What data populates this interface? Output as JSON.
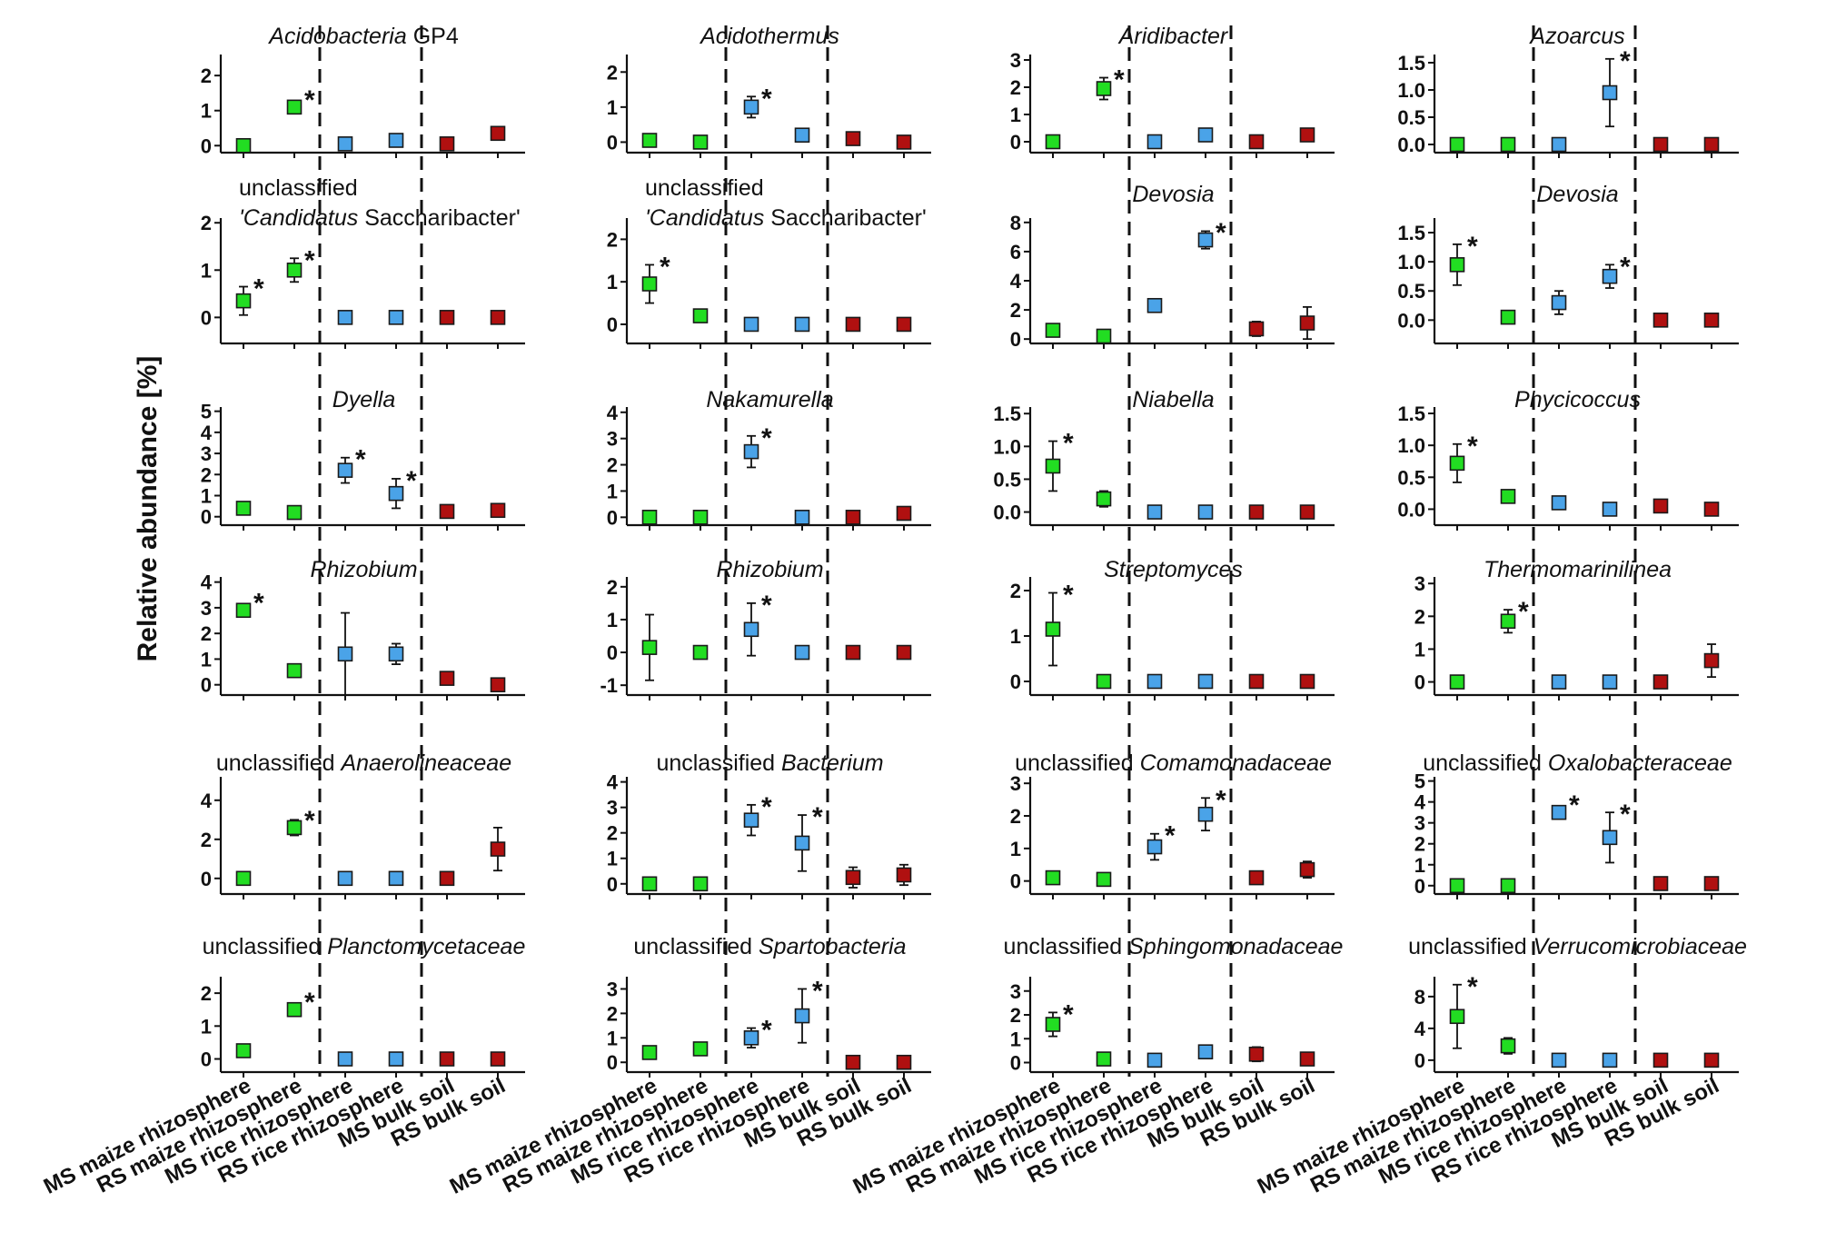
{
  "y_axis_label": "Relative abundance [%]",
  "x_categories": [
    "MS maize rhizosphere",
    "RS maize rhizosphere",
    "MS rice rhizosphere",
    "RS rice rhizosphere",
    "MS bulk soil",
    "RS bulk soil"
  ],
  "colors": {
    "maize": "#22dd22",
    "rice": "#4aa3e8",
    "bulk": "#b01010"
  },
  "chart_data": [
    {
      "type": "scatter",
      "row": 0,
      "col": 0,
      "title_parts": [
        {
          "text": "Acidobacteria",
          "italic": true
        },
        {
          "text": " GP4",
          "italic": false
        }
      ],
      "yticks": [
        "0",
        "1",
        "2"
      ],
      "ylim": [
        -0.2,
        2.6
      ],
      "values": [
        0.0,
        1.1,
        0.05,
        0.15,
        0.05,
        0.35
      ],
      "err": [
        0.05,
        0.1,
        0.05,
        0.1,
        0.05,
        0.08
      ],
      "sig": [
        false,
        true,
        false,
        false,
        false,
        false
      ]
    },
    {
      "type": "scatter",
      "row": 0,
      "col": 1,
      "title_parts": [
        {
          "text": "Acidothermus",
          "italic": true
        }
      ],
      "yticks": [
        "0",
        "1",
        "2"
      ],
      "ylim": [
        -0.3,
        2.5
      ],
      "values": [
        0.05,
        0.0,
        1.0,
        0.2,
        0.1,
        0.0
      ],
      "err": [
        0.1,
        0.1,
        0.3,
        0.1,
        0.1,
        0.1
      ],
      "sig": [
        false,
        false,
        true,
        false,
        false,
        false
      ]
    },
    {
      "type": "scatter",
      "row": 0,
      "col": 2,
      "title_parts": [
        {
          "text": "Aridibacter",
          "italic": true
        }
      ],
      "yticks": [
        "0",
        "1",
        "2",
        "3"
      ],
      "ylim": [
        -0.4,
        3.2
      ],
      "values": [
        0.0,
        1.95,
        0.0,
        0.25,
        0.0,
        0.25
      ],
      "err": [
        0.1,
        0.4,
        0.1,
        0.1,
        0.1,
        0.1
      ],
      "sig": [
        false,
        true,
        false,
        false,
        false,
        false
      ]
    },
    {
      "type": "scatter",
      "row": 0,
      "col": 3,
      "title_parts": [
        {
          "text": "Azoarcus",
          "italic": true
        }
      ],
      "yticks": [
        "0.0",
        "0.5",
        "1.0",
        "1.5"
      ],
      "ylim": [
        -0.15,
        1.65
      ],
      "values": [
        0.0,
        0.0,
        0.0,
        0.95,
        0.0,
        0.0
      ],
      "err": [
        0.02,
        0.02,
        0.05,
        0.62,
        0.02,
        0.02
      ],
      "sig": [
        false,
        false,
        false,
        true,
        false,
        false
      ]
    },
    {
      "type": "scatter",
      "row": 1,
      "col": 0,
      "title_parts": [
        {
          "text": "unclassified",
          "italic": false
        },
        {
          "text": "'Candidatus",
          "italic": true,
          "newline": true
        },
        {
          "text": " Saccharibacter'",
          "italic": false
        }
      ],
      "yticks": [
        "0",
        "1",
        "2"
      ],
      "ylim": [
        -0.55,
        2.1
      ],
      "values": [
        0.35,
        1.0,
        0.0,
        0.0,
        0.0,
        0.0
      ],
      "err": [
        0.3,
        0.25,
        0.05,
        0.03,
        0.03,
        0.03
      ],
      "sig": [
        true,
        true,
        false,
        false,
        false,
        false
      ]
    },
    {
      "type": "scatter",
      "row": 1,
      "col": 1,
      "title_parts": [
        {
          "text": "unclassified",
          "italic": false
        },
        {
          "text": "'Candidatus",
          "italic": true,
          "newline": true
        },
        {
          "text": " Saccharibacter'",
          "italic": false
        }
      ],
      "yticks": [
        "0",
        "1",
        "2"
      ],
      "ylim": [
        -0.45,
        2.5
      ],
      "values": [
        0.95,
        0.2,
        0.0,
        0.0,
        0.0,
        0.0
      ],
      "err": [
        0.45,
        0.1,
        0.03,
        0.03,
        0.03,
        0.03
      ],
      "sig": [
        true,
        false,
        false,
        false,
        false,
        false
      ]
    },
    {
      "type": "scatter",
      "row": 1,
      "col": 2,
      "title_parts": [
        {
          "text": "Devosia",
          "italic": true
        }
      ],
      "yticks": [
        "0",
        "2",
        "4",
        "6",
        "8"
      ],
      "ylim": [
        -0.3,
        8.3
      ],
      "values": [
        0.6,
        0.2,
        2.3,
        6.8,
        0.7,
        1.1
      ],
      "err": [
        0.3,
        0.3,
        0.2,
        0.6,
        0.5,
        1.1
      ],
      "sig": [
        false,
        false,
        false,
        true,
        false,
        false
      ]
    },
    {
      "type": "scatter",
      "row": 1,
      "col": 3,
      "title_parts": [
        {
          "text": "Devosia",
          "italic": true
        }
      ],
      "yticks": [
        "0.0",
        "0.5",
        "1.0",
        "1.5"
      ],
      "ylim": [
        -0.4,
        1.75
      ],
      "values": [
        0.95,
        0.05,
        0.3,
        0.75,
        0.0,
        0.0
      ],
      "err": [
        0.35,
        0.05,
        0.2,
        0.2,
        0.03,
        0.03
      ],
      "sig": [
        true,
        false,
        false,
        true,
        false,
        false
      ]
    },
    {
      "type": "scatter",
      "row": 2,
      "col": 0,
      "title_parts": [
        {
          "text": "Dyella",
          "italic": true
        }
      ],
      "yticks": [
        "0",
        "1",
        "2",
        "3",
        "4",
        "5"
      ],
      "ylim": [
        -0.4,
        5.2
      ],
      "values": [
        0.4,
        0.2,
        2.2,
        1.1,
        0.25,
        0.3
      ],
      "err": [
        0.2,
        0.2,
        0.6,
        0.7,
        0.15,
        0.3
      ],
      "sig": [
        false,
        false,
        true,
        true,
        false,
        false
      ]
    },
    {
      "type": "scatter",
      "row": 2,
      "col": 1,
      "title_parts": [
        {
          "text": "Nakamurella",
          "italic": true
        }
      ],
      "yticks": [
        "0",
        "1",
        "2",
        "3",
        "4"
      ],
      "ylim": [
        -0.3,
        4.2
      ],
      "values": [
        0.0,
        0.0,
        2.5,
        0.0,
        0.0,
        0.15
      ],
      "err": [
        0.1,
        0.1,
        0.6,
        0.15,
        0.1,
        0.2
      ],
      "sig": [
        false,
        false,
        true,
        false,
        false,
        false
      ]
    },
    {
      "type": "scatter",
      "row": 2,
      "col": 2,
      "title_parts": [
        {
          "text": "Niabella",
          "italic": true
        }
      ],
      "yticks": [
        "0.0",
        "0.5",
        "1.0",
        "1.5"
      ],
      "ylim": [
        -0.2,
        1.6
      ],
      "values": [
        0.7,
        0.2,
        0.0,
        0.0,
        0.0,
        0.0
      ],
      "err": [
        0.38,
        0.12,
        0.05,
        0.02,
        0.02,
        0.03
      ],
      "sig": [
        true,
        false,
        false,
        false,
        false,
        false
      ]
    },
    {
      "type": "scatter",
      "row": 2,
      "col": 3,
      "title_parts": [
        {
          "text": "Phycicoccus",
          "italic": true
        }
      ],
      "yticks": [
        "0.0",
        "0.5",
        "1.0",
        "1.5"
      ],
      "ylim": [
        -0.25,
        1.6
      ],
      "values": [
        0.72,
        0.2,
        0.1,
        0.0,
        0.05,
        0.0
      ],
      "err": [
        0.3,
        0.05,
        0.05,
        0.05,
        0.03,
        0.03
      ],
      "sig": [
        true,
        false,
        false,
        false,
        false,
        false
      ]
    },
    {
      "type": "scatter",
      "row": 3,
      "col": 0,
      "title_parts": [
        {
          "text": "Rhizobium",
          "italic": true
        }
      ],
      "yticks": [
        "0",
        "1",
        "2",
        "3",
        "4"
      ],
      "ylim": [
        -0.4,
        4.2
      ],
      "values": [
        2.9,
        0.55,
        1.2,
        1.2,
        0.25,
        0.0
      ],
      "err": [
        0.2,
        0.15,
        1.6,
        0.4,
        0.1,
        0.1
      ],
      "sig": [
        true,
        false,
        false,
        false,
        false,
        false
      ]
    },
    {
      "type": "scatter",
      "row": 3,
      "col": 1,
      "title_parts": [
        {
          "text": "Rhizobium",
          "italic": true
        }
      ],
      "yticks": [
        "-1",
        "0",
        "1",
        "2"
      ],
      "ylim": [
        -1.3,
        2.3
      ],
      "values": [
        0.15,
        0.0,
        0.7,
        0.0,
        0.0,
        0.0
      ],
      "err": [
        1.0,
        0.15,
        0.8,
        0.15,
        0.05,
        0.05
      ],
      "sig": [
        false,
        false,
        true,
        false,
        false,
        false
      ]
    },
    {
      "type": "scatter",
      "row": 3,
      "col": 2,
      "title_parts": [
        {
          "text": "Streptomyces",
          "italic": true
        }
      ],
      "yticks": [
        "0",
        "1",
        "2"
      ],
      "ylim": [
        -0.3,
        2.3
      ],
      "values": [
        1.15,
        0.0,
        0.0,
        0.0,
        0.0,
        0.0
      ],
      "err": [
        0.8,
        0.05,
        0.1,
        0.05,
        0.05,
        0.05
      ],
      "sig": [
        true,
        false,
        false,
        false,
        false,
        false
      ]
    },
    {
      "type": "scatter",
      "row": 3,
      "col": 3,
      "title_parts": [
        {
          "text": "Thermomarinilinea",
          "italic": true
        }
      ],
      "yticks": [
        "0",
        "1",
        "2",
        "3"
      ],
      "ylim": [
        -0.4,
        3.2
      ],
      "values": [
        0.0,
        1.85,
        0.0,
        0.0,
        0.0,
        0.65
      ],
      "err": [
        0.03,
        0.35,
        0.05,
        0.1,
        0.05,
        0.5
      ],
      "sig": [
        false,
        true,
        false,
        false,
        false,
        false
      ]
    },
    {
      "type": "scatter",
      "row": 4,
      "col": 0,
      "title_parts": [
        {
          "text": "unclassified ",
          "italic": false
        },
        {
          "text": "Anaerolineaceae",
          "italic": true
        }
      ],
      "yticks": [
        "0",
        "2",
        "4"
      ],
      "ylim": [
        -0.8,
        5.2
      ],
      "values": [
        0.0,
        2.6,
        0.0,
        0.0,
        0.0,
        1.5
      ],
      "err": [
        0.2,
        0.4,
        0.3,
        0.3,
        0.1,
        1.1
      ],
      "sig": [
        false,
        true,
        false,
        false,
        false,
        false
      ]
    },
    {
      "type": "scatter",
      "row": 4,
      "col": 1,
      "title_parts": [
        {
          "text": "unclassified ",
          "italic": false
        },
        {
          "text": "Bacterium",
          "italic": true
        }
      ],
      "yticks": [
        "0",
        "1",
        "2",
        "3",
        "4"
      ],
      "ylim": [
        -0.4,
        4.2
      ],
      "values": [
        0.0,
        0.0,
        2.5,
        1.6,
        0.25,
        0.35
      ],
      "err": [
        0.1,
        0.1,
        0.6,
        1.1,
        0.4,
        0.4
      ],
      "sig": [
        false,
        false,
        true,
        true,
        false,
        false
      ]
    },
    {
      "type": "scatter",
      "row": 4,
      "col": 2,
      "title_parts": [
        {
          "text": "unclassified ",
          "italic": false
        },
        {
          "text": "Comamonadaceae",
          "italic": true
        }
      ],
      "yticks": [
        "0",
        "1",
        "2",
        "3"
      ],
      "ylim": [
        -0.4,
        3.2
      ],
      "values": [
        0.1,
        0.05,
        1.05,
        2.05,
        0.1,
        0.35
      ],
      "err": [
        0.1,
        0.1,
        0.4,
        0.5,
        0.1,
        0.25
      ],
      "sig": [
        false,
        false,
        true,
        true,
        false,
        false
      ]
    },
    {
      "type": "scatter",
      "row": 4,
      "col": 3,
      "title_parts": [
        {
          "text": "unclassified ",
          "italic": false
        },
        {
          "text": "Oxalobacteraceae",
          "italic": true
        }
      ],
      "yticks": [
        "0",
        "1",
        "2",
        "3",
        "4",
        "5"
      ],
      "ylim": [
        -0.4,
        5.2
      ],
      "values": [
        0.0,
        0.0,
        3.5,
        2.3,
        0.1,
        0.1
      ],
      "err": [
        0.2,
        0.2,
        0.2,
        1.2,
        0.1,
        0.1
      ],
      "sig": [
        false,
        false,
        true,
        true,
        false,
        false
      ]
    },
    {
      "type": "scatter",
      "row": 5,
      "col": 0,
      "title_parts": [
        {
          "text": "unclassified ",
          "italic": false
        },
        {
          "text": "Planctomycetaceae",
          "italic": true
        }
      ],
      "yticks": [
        "0",
        "1",
        "2"
      ],
      "ylim": [
        -0.4,
        2.5
      ],
      "values": [
        0.25,
        1.5,
        0.0,
        0.0,
        0.0,
        0.0
      ],
      "err": [
        0.1,
        0.15,
        0.15,
        0.15,
        0.05,
        0.05
      ],
      "sig": [
        false,
        true,
        false,
        false,
        false,
        false
      ]
    },
    {
      "type": "scatter",
      "row": 5,
      "col": 1,
      "title_parts": [
        {
          "text": "unclassified ",
          "italic": false
        },
        {
          "text": "Spartobacteria",
          "italic": true
        }
      ],
      "yticks": [
        "0",
        "1",
        "2",
        "3"
      ],
      "ylim": [
        -0.4,
        3.5
      ],
      "values": [
        0.4,
        0.55,
        1.0,
        1.9,
        0.0,
        0.0
      ],
      "err": [
        0.1,
        0.15,
        0.4,
        1.1,
        0.05,
        0.05
      ],
      "sig": [
        false,
        false,
        true,
        true,
        false,
        false
      ]
    },
    {
      "type": "scatter",
      "row": 5,
      "col": 2,
      "title_parts": [
        {
          "text": "unclassified ",
          "italic": false
        },
        {
          "text": "Sphingomonadaceae",
          "italic": true
        }
      ],
      "yticks": [
        "0",
        "1",
        "2",
        "3"
      ],
      "ylim": [
        -0.4,
        3.6
      ],
      "values": [
        1.6,
        0.15,
        0.1,
        0.45,
        0.35,
        0.15
      ],
      "err": [
        0.5,
        0.1,
        0.1,
        0.1,
        0.3,
        0.1
      ],
      "sig": [
        true,
        false,
        false,
        false,
        false,
        false
      ]
    },
    {
      "type": "scatter",
      "row": 5,
      "col": 3,
      "title_parts": [
        {
          "text": "unclassified ",
          "italic": false
        },
        {
          "text": "Verrucomicrobiaceae",
          "italic": true
        }
      ],
      "yticks": [
        "0",
        "4",
        "8"
      ],
      "ylim": [
        -1.5,
        10.5
      ],
      "values": [
        5.5,
        1.8,
        0.0,
        0.0,
        0.0,
        0.0
      ],
      "err": [
        4.0,
        1.0,
        0.1,
        0.1,
        0.1,
        0.1
      ],
      "sig": [
        true,
        false,
        false,
        false,
        false,
        false
      ]
    }
  ]
}
